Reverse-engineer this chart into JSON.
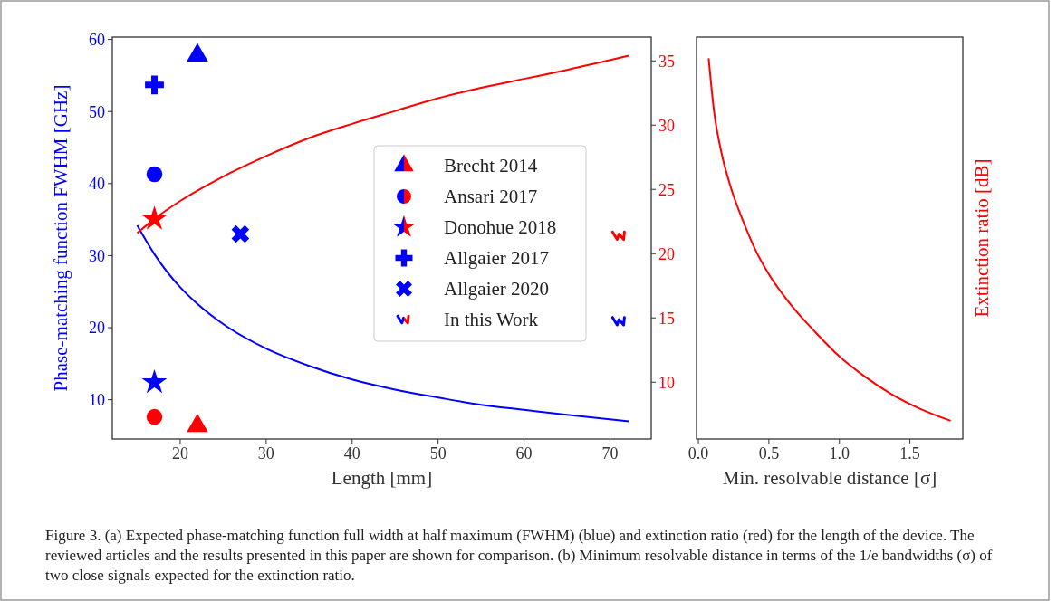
{
  "chart_data": [
    {
      "type": "scatter",
      "xlabel": "Length [mm]",
      "ylabel": "Phase-matching function FWHM [GHz]",
      "xlim": [
        12.1,
        74.8
      ],
      "xticks": [
        20,
        30,
        40,
        50,
        60,
        70
      ],
      "ylim": [
        4.55,
        60.33
      ],
      "yticks": [
        10,
        20,
        30,
        40,
        50,
        60
      ],
      "y2lim": [
        5.58,
        36.85
      ],
      "y2ticks": [
        10,
        15,
        20,
        25,
        30,
        35
      ],
      "grid": false,
      "legend": "center right",
      "annotations": [
        "Figure 3.  (a) Expected phase-matching function full width at half maximum (FWHM) (blue) and extinction ratio (red) for the length of the device. The reviewed articles and the results presented in this paper are shown for comparison. (b) Minimum resolvable distance in terms of the 1/e bandwidths (σ) of two close signals expected for the extinction ratio."
      ],
      "series": [
        {
          "type": "line",
          "color": "#0000ff",
          "axis": "y",
          "marker": "none",
          "x": [
            15,
            17,
            20,
            22,
            25,
            30,
            35,
            40,
            45,
            50,
            55,
            60,
            65,
            72.2
          ],
          "values": [
            34.2,
            30.2,
            25.6,
            23.3,
            20.5,
            17.1,
            14.7,
            12.8,
            11.4,
            10.3,
            9.3,
            8.6,
            7.9,
            7.0
          ]
        },
        {
          "type": "line",
          "color": "#ff0000",
          "axis": "y2",
          "marker": "none",
          "x": [
            15,
            17,
            20,
            25,
            30,
            35,
            40,
            45,
            50,
            55,
            60,
            65,
            72.2
          ],
          "values": [
            21.6,
            22.7,
            24.1,
            26.0,
            27.6,
            29.0,
            30.1,
            31.1,
            32.1,
            32.9,
            33.6,
            34.3,
            35.4
          ]
        },
        {
          "name": "Brecht 2014",
          "color": "#0000ff",
          "axis": "y",
          "marker": "triangle",
          "x": [
            22
          ],
          "values": [
            57.8
          ]
        },
        {
          "color": "#ff0000",
          "axis": "y2",
          "marker": "triangle",
          "x": [
            22
          ],
          "values": [
            6.6
          ]
        },
        {
          "name": "Ansari 2017",
          "color": "#0000ff",
          "axis": "y",
          "marker": "circle",
          "x": [
            17
          ],
          "values": [
            41.3
          ]
        },
        {
          "color": "#ff0000",
          "axis": "y2",
          "marker": "circle",
          "x": [
            17
          ],
          "values": [
            7.3
          ]
        },
        {
          "name": "Donohue 2018",
          "color": "#0000ff",
          "axis": "y",
          "marker": "star",
          "x": [
            17
          ],
          "values": [
            12.4
          ]
        },
        {
          "color": "#ff0000",
          "axis": "y2",
          "marker": "star",
          "x": [
            17
          ],
          "values": [
            22.7
          ]
        },
        {
          "name": "Allgaier 2017",
          "color": "#0000ff",
          "axis": "y",
          "marker": "cross",
          "x": [
            17
          ],
          "values": [
            53.7
          ]
        },
        {
          "name": "Allgaier 2020",
          "color": "#0000ff",
          "axis": "y",
          "marker": "x",
          "x": [
            27
          ],
          "values": [
            33.0
          ]
        },
        {
          "name": "In this Work",
          "color": "#0000ff",
          "axis": "y",
          "x": [
            71.1
          ],
          "values": [
            20.9
          ]
        },
        {
          "color": "#ff0000",
          "axis": "y2",
          "x": [
            71.1
          ],
          "values": [
            21.4
          ]
        }
      ]
    },
    {
      "type": "line",
      "xlabel": "Min. resolvable distance [σ]",
      "y2label": "Extinction ratio [dB]",
      "xlim": [
        -0.013,
        1.875
      ],
      "xticks": [
        {
          "value": 0,
          "label": "0.0"
        },
        0.5,
        {
          "value": 1,
          "label": "1.0"
        },
        1.5
      ],
      "y2lim": [
        5.58,
        36.85
      ],
      "tick_labels": "x",
      "grid": false,
      "series": [
        {
          "color": "#ff0000",
          "axis": "y2",
          "x": [
            0.073,
            0.111,
            0.165,
            0.229,
            0.315,
            0.4,
            0.5,
            0.658,
            0.829,
            1.0,
            1.172,
            1.365,
            1.579,
            1.789
          ],
          "values": [
            35.2,
            31.1,
            27.8,
            25.2,
            22.6,
            20.4,
            18.4,
            16.0,
            13.9,
            12.0,
            10.5,
            9.1,
            7.9,
            7.0
          ]
        }
      ]
    }
  ]
}
